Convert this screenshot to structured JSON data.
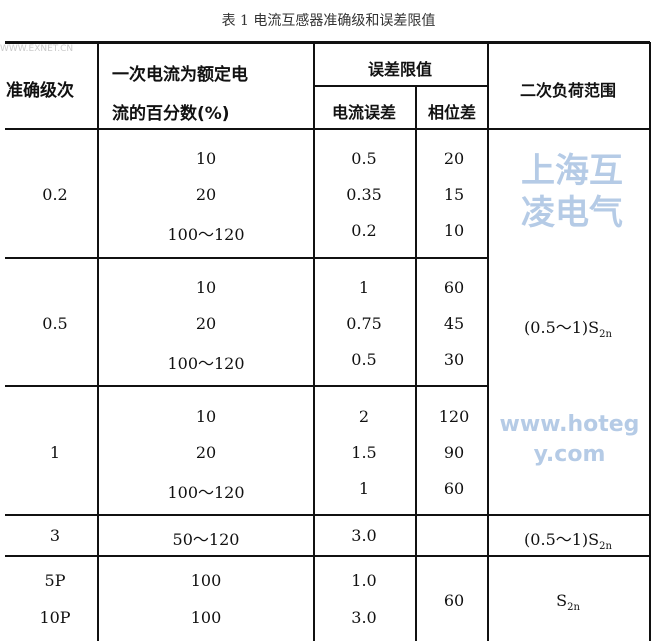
{
  "caption": "表 1  电流互感器准确级和误差限值",
  "watermarks": {
    "site": "WWW.EXNET.CN",
    "brand": "上海互凌电气",
    "url": "www.hotegy.com"
  },
  "headers": {
    "class": "准确级次",
    "percent_l1": "一次电流为额定电",
    "percent_l2": "流的百分数(%)",
    "error_limit": "误差限值",
    "current_error": "电流误差",
    "phase_error": "相位差",
    "burden": "二次负荷范围"
  },
  "groups": [
    {
      "class": "0.2",
      "rows": [
        [
          "10",
          "0.5",
          "20"
        ],
        [
          "20",
          "0.35",
          "15"
        ],
        [
          "100～120",
          "0.2",
          "10"
        ]
      ]
    },
    {
      "class": "0.5",
      "rows": [
        [
          "10",
          "1",
          "60"
        ],
        [
          "20",
          "0.75",
          "45"
        ],
        [
          "100～120",
          "0.5",
          "30"
        ]
      ]
    },
    {
      "class": "1",
      "rows": [
        [
          "10",
          "2",
          "120"
        ],
        [
          "20",
          "1.5",
          "90"
        ],
        [
          "100～120",
          "1",
          "60"
        ]
      ]
    },
    {
      "class": "3",
      "rows": [
        [
          "50～120",
          "3.0"
        ]
      ]
    }
  ],
  "class_3_burden": "(0.5～1)S",
  "burden_main": "(0.5～1)S",
  "burden_sub": "2n",
  "protection": {
    "classes": [
      "5P",
      "10P"
    ],
    "percent": [
      "100",
      "100"
    ],
    "current_error": [
      "1.0",
      "3.0"
    ],
    "phase_error": "60",
    "burden": "S",
    "burden_sub": "2n"
  }
}
